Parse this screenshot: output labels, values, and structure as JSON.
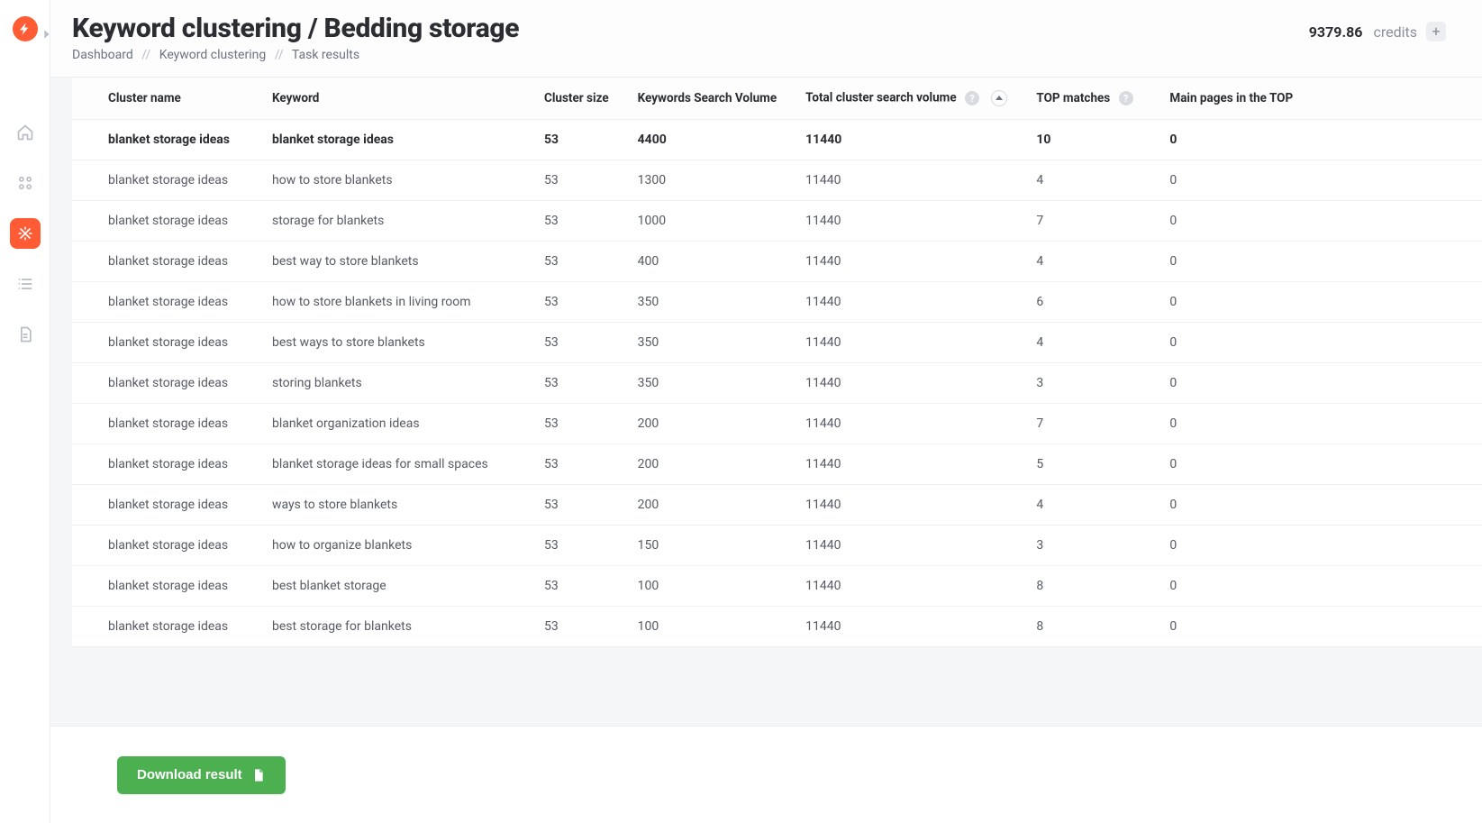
{
  "page": {
    "title": "Keyword clustering / Bedding storage",
    "breadcrumb": [
      "Dashboard",
      "Keyword clustering",
      "Task results"
    ],
    "separator": "//"
  },
  "header": {
    "credits_value": "9379.86",
    "credits_label": "credits"
  },
  "sidebar": {
    "items": [
      "home",
      "grid",
      "tools",
      "list",
      "doc"
    ],
    "active_index": 2,
    "accent_color": "#ff5c35",
    "icon_color": "#b7bcc5"
  },
  "table": {
    "columns": [
      {
        "key": "cluster_name",
        "label": "Cluster name"
      },
      {
        "key": "keyword",
        "label": "Keyword"
      },
      {
        "key": "cluster_size",
        "label": "Cluster size"
      },
      {
        "key": "ksv",
        "label": "Keywords Search Volume"
      },
      {
        "key": "total_volume",
        "label": "Total cluster search volume",
        "help": true,
        "sort": "asc"
      },
      {
        "key": "top_matches",
        "label": "TOP matches",
        "help": true
      },
      {
        "key": "main_pages",
        "label": "Main pages in the TOP"
      }
    ],
    "rows": [
      {
        "cluster_name": "blanket storage ideas",
        "keyword": "blanket storage ideas",
        "cluster_size": "53",
        "ksv": "4400",
        "total_volume": "11440",
        "top_matches": "10",
        "main_pages": "0",
        "highlight": true
      },
      {
        "cluster_name": "blanket storage ideas",
        "keyword": "how to store blankets",
        "cluster_size": "53",
        "ksv": "1300",
        "total_volume": "11440",
        "top_matches": "4",
        "main_pages": "0"
      },
      {
        "cluster_name": "blanket storage ideas",
        "keyword": "storage for blankets",
        "cluster_size": "53",
        "ksv": "1000",
        "total_volume": "11440",
        "top_matches": "7",
        "main_pages": "0"
      },
      {
        "cluster_name": "blanket storage ideas",
        "keyword": "best way to store blankets",
        "cluster_size": "53",
        "ksv": "400",
        "total_volume": "11440",
        "top_matches": "4",
        "main_pages": "0"
      },
      {
        "cluster_name": "blanket storage ideas",
        "keyword": "how to store blankets in living room",
        "cluster_size": "53",
        "ksv": "350",
        "total_volume": "11440",
        "top_matches": "6",
        "main_pages": "0"
      },
      {
        "cluster_name": "blanket storage ideas",
        "keyword": "best ways to store blankets",
        "cluster_size": "53",
        "ksv": "350",
        "total_volume": "11440",
        "top_matches": "4",
        "main_pages": "0"
      },
      {
        "cluster_name": "blanket storage ideas",
        "keyword": "storing blankets",
        "cluster_size": "53",
        "ksv": "350",
        "total_volume": "11440",
        "top_matches": "3",
        "main_pages": "0"
      },
      {
        "cluster_name": "blanket storage ideas",
        "keyword": "blanket organization ideas",
        "cluster_size": "53",
        "ksv": "200",
        "total_volume": "11440",
        "top_matches": "7",
        "main_pages": "0"
      },
      {
        "cluster_name": "blanket storage ideas",
        "keyword": "blanket storage ideas for small spaces",
        "cluster_size": "53",
        "ksv": "200",
        "total_volume": "11440",
        "top_matches": "5",
        "main_pages": "0"
      },
      {
        "cluster_name": "blanket storage ideas",
        "keyword": "ways to store blankets",
        "cluster_size": "53",
        "ksv": "200",
        "total_volume": "11440",
        "top_matches": "4",
        "main_pages": "0"
      },
      {
        "cluster_name": "blanket storage ideas",
        "keyword": "how to organize blankets",
        "cluster_size": "53",
        "ksv": "150",
        "total_volume": "11440",
        "top_matches": "3",
        "main_pages": "0"
      },
      {
        "cluster_name": "blanket storage ideas",
        "keyword": "best blanket storage",
        "cluster_size": "53",
        "ksv": "100",
        "total_volume": "11440",
        "top_matches": "8",
        "main_pages": "0"
      },
      {
        "cluster_name": "blanket storage ideas",
        "keyword": "best storage for blankets",
        "cluster_size": "53",
        "ksv": "100",
        "total_volume": "11440",
        "top_matches": "8",
        "main_pages": "0"
      }
    ]
  },
  "actions": {
    "download_label": "Download result",
    "download_color": "#4caf50"
  },
  "colors": {
    "bg": "#f5f6f8",
    "panel": "#ffffff",
    "border": "#eceef1",
    "text_primary": "#2b2d33",
    "text_secondary": "#565a64",
    "text_muted": "#8a8f99",
    "accent": "#ff5c35",
    "success": "#4caf50"
  }
}
